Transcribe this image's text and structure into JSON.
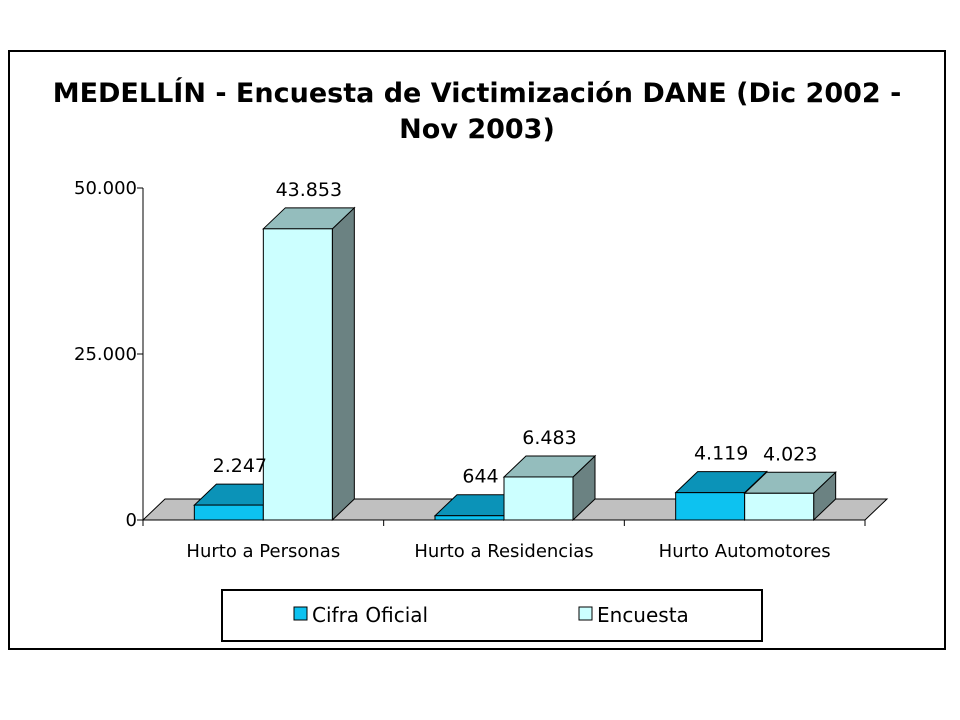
{
  "chart_data": {
    "type": "bar",
    "title_lines": [
      "MEDELLÍN - Encuesta de Victimización DANE (Dic 2002 -",
      "Nov 2003)"
    ],
    "categories": [
      "Hurto a Personas",
      "Hurto a Residencias",
      "Hurto Automotores"
    ],
    "series": [
      {
        "name": "Cifra Oficial",
        "values": [
          2247,
          644,
          4119
        ],
        "labels": [
          "2.247",
          "644",
          "4.119"
        ],
        "color_front": "#0DC2F0",
        "color_top": "#0B93B8",
        "color_side": "#0A7FA0"
      },
      {
        "name": "Encuesta",
        "values": [
          43853,
          6483,
          4023
        ],
        "labels": [
          "43.853",
          "6.483",
          "4.023"
        ],
        "color_front": "#CCFFFF",
        "color_top": "#94BDBD",
        "color_side": "#6B8282"
      }
    ],
    "ylim": [
      0,
      50000
    ],
    "yticks": [
      {
        "value": 0,
        "label": "0"
      },
      {
        "value": 25000,
        "label": "25.000"
      },
      {
        "value": 50000,
        "label": "50.000"
      }
    ],
    "floor_color": "#C0C0C0",
    "legend_position": "bottom",
    "three_d": true
  }
}
